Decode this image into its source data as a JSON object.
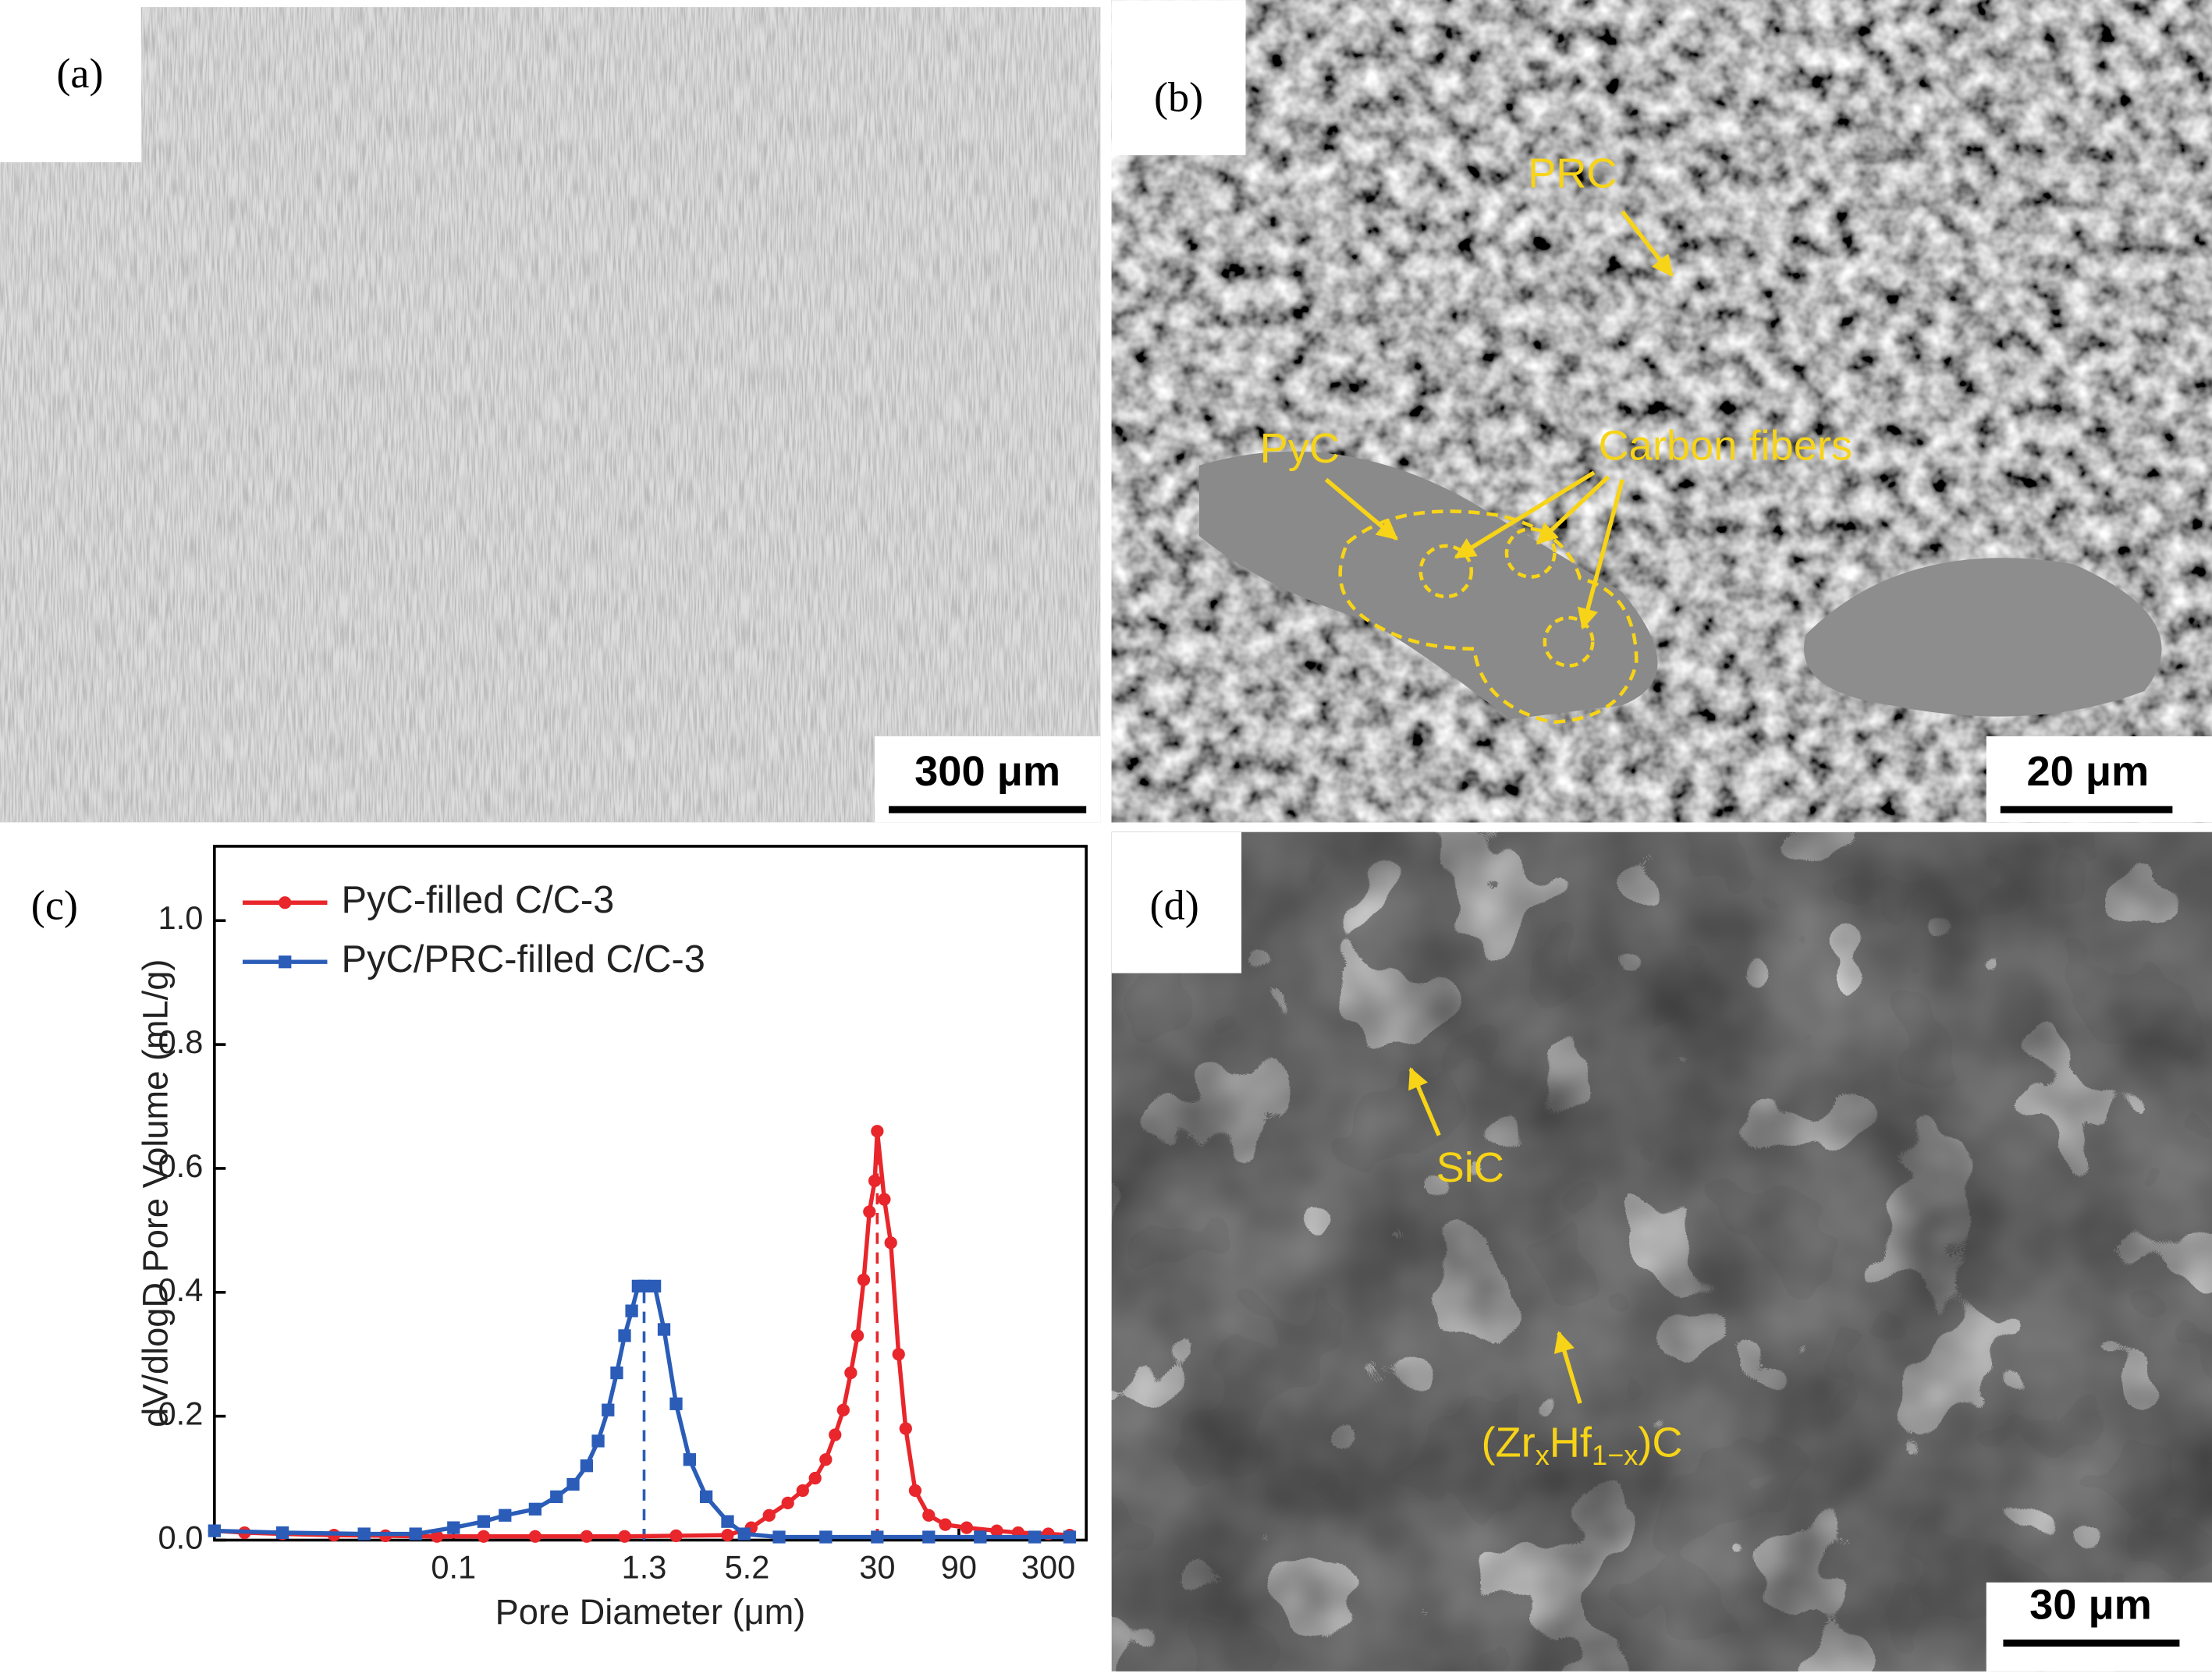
{
  "panels": [
    {
      "label": "(a)",
      "scale_bar": "300 μm"
    },
    {
      "label": "(b)",
      "scale_bar": "20 μm",
      "annotations": [
        "PRC",
        "PyC",
        "Carbon fibers"
      ]
    },
    {
      "label": "(c)"
    },
    {
      "label": "(d)",
      "scale_bar": "30 μm",
      "annotations": [
        "SiC"
      ],
      "formula": [
        "(Zr",
        "x",
        "Hf",
        "1−x",
        ")C"
      ]
    }
  ],
  "chart_data": {
    "type": "line",
    "x_label": "Pore Diameter (μm)",
    "y_label": "dV/dlogD Pore Volume (mL/g)",
    "xscale": "log",
    "xlim": [
      0.004,
      500
    ],
    "xticks": [
      0.1,
      1.3,
      5.2,
      30,
      90,
      300
    ],
    "ylim": [
      0,
      1.12
    ],
    "yticks": [
      {
        "value": 0,
        "label": "0.0"
      },
      0.2,
      0.4,
      0.6,
      0.8,
      {
        "value": 1,
        "label": "1.0"
      }
    ],
    "legend": "upper left",
    "series": [
      {
        "name": "PyC-filled C/C-3",
        "color": "#e8262b",
        "marker": "circle",
        "x": [
          0.004,
          0.006,
          0.01,
          0.02,
          0.04,
          0.08,
          0.15,
          0.3,
          0.6,
          1,
          2,
          4,
          5.5,
          7,
          9,
          11,
          13,
          15,
          17,
          19,
          21,
          23,
          25,
          27,
          29,
          30,
          33,
          36,
          40,
          44,
          50,
          60,
          75,
          100,
          150,
          200,
          300,
          400
        ],
        "values": [
          0.015,
          0.012,
          0.01,
          0.008,
          0.007,
          0.006,
          0.006,
          0.006,
          0.006,
          0.006,
          0.007,
          0.008,
          0.02,
          0.04,
          0.06,
          0.08,
          0.1,
          0.13,
          0.17,
          0.21,
          0.27,
          0.33,
          0.42,
          0.53,
          0.58,
          0.66,
          0.55,
          0.48,
          0.3,
          0.18,
          0.08,
          0.04,
          0.025,
          0.02,
          0.015,
          0.012,
          0.01,
          0.008
        ]
      },
      {
        "name": "PyC/PRC-filled C/C-3",
        "color": "#2a5cb8",
        "marker": "square",
        "x": [
          0.004,
          0.01,
          0.03,
          0.06,
          0.1,
          0.15,
          0.2,
          0.3,
          0.4,
          0.5,
          0.6,
          0.7,
          0.8,
          0.9,
          1.0,
          1.1,
          1.2,
          1.3,
          1.5,
          1.7,
          2,
          2.4,
          3,
          4,
          5,
          8,
          15,
          30,
          60,
          120,
          250,
          400
        ],
        "values": [
          0.015,
          0.012,
          0.01,
          0.01,
          0.02,
          0.03,
          0.04,
          0.05,
          0.07,
          0.09,
          0.12,
          0.16,
          0.21,
          0.27,
          0.33,
          0.37,
          0.41,
          0.41,
          0.41,
          0.34,
          0.22,
          0.13,
          0.07,
          0.03,
          0.01,
          0.005,
          0.005,
          0.005,
          0.005,
          0.005,
          0.005,
          0.005
        ]
      }
    ],
    "reference_lines": [
      {
        "x": 1.3,
        "y": 0.41,
        "color": "#2a5cb8"
      },
      {
        "x": 30,
        "y": 0.66,
        "color": "#e8262b"
      }
    ]
  }
}
